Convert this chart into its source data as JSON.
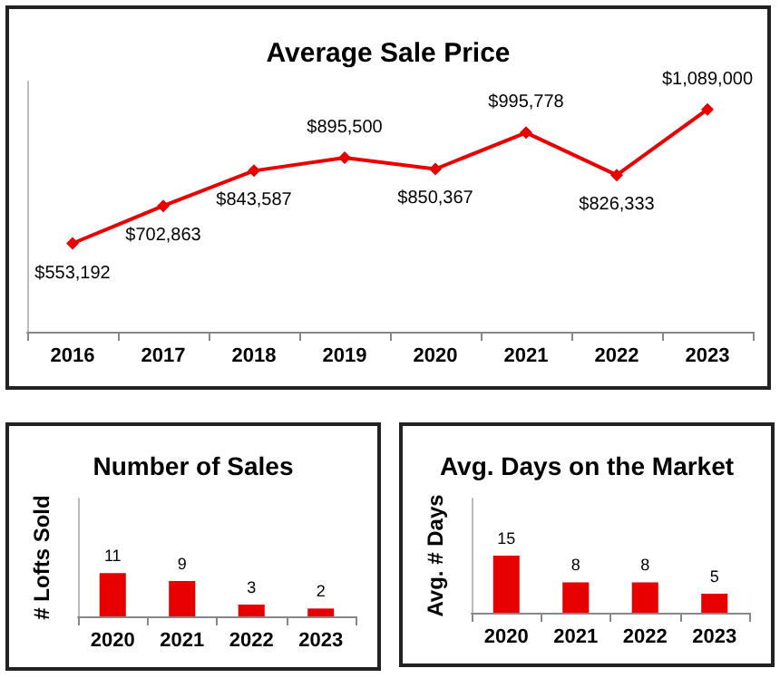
{
  "chart_data": [
    {
      "type": "line",
      "title": "Average Sale Price",
      "categories": [
        "2016",
        "2017",
        "2018",
        "2019",
        "2020",
        "2021",
        "2022",
        "2023"
      ],
      "series": [
        {
          "color": "#e80000",
          "values": [
            553192,
            702863,
            843587,
            895500,
            850367,
            995778,
            826333,
            1089000
          ],
          "value_labels": [
            "$553,192",
            "$702,863",
            "$843,587",
            "$895,500",
            "$850,367",
            "$995,778",
            "$826,333",
            "$1,089,000"
          ]
        }
      ],
      "ylim": [
        200000,
        1200000
      ],
      "tick_labels": "x",
      "marker": "diamond",
      "grid": false
    },
    {
      "type": "bar",
      "title": "Number of Sales",
      "ylabel": "# Lofts Sold",
      "categories": [
        "2020",
        "2021",
        "2022",
        "2023"
      ],
      "series": [
        {
          "color": "#e80000",
          "values": [
            11,
            9,
            3,
            2
          ]
        }
      ],
      "ylim": [
        0,
        30
      ],
      "tick_labels": "x",
      "data_labels": true,
      "grid": false
    },
    {
      "type": "bar",
      "title": "Avg. Days on the Market",
      "ylabel": "Avg. # Days",
      "categories": [
        "2020",
        "2021",
        "2022",
        "2023"
      ],
      "series": [
        {
          "color": "#e80000",
          "values": [
            15,
            8,
            8,
            5
          ]
        }
      ],
      "ylim": [
        0,
        30
      ],
      "tick_labels": "x",
      "data_labels": true,
      "grid": false
    }
  ]
}
